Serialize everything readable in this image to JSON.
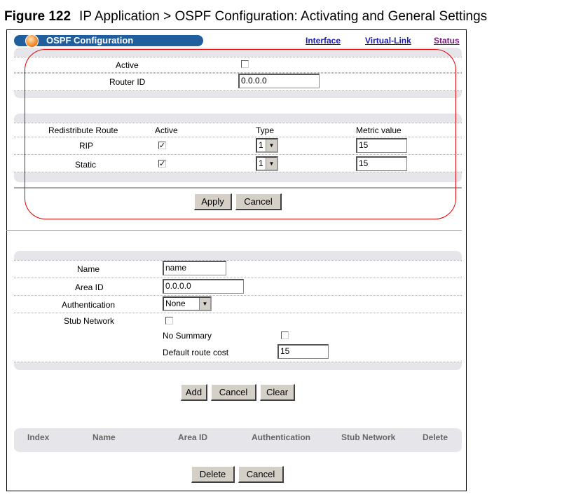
{
  "caption": {
    "figure": "Figure 122",
    "text": "IP Application > OSPF Configuration: Activating and General Settings"
  },
  "header": {
    "title": "OSPF Configuration",
    "links": [
      "Interface",
      "Virtual-Link",
      "Status"
    ]
  },
  "general": {
    "active_label": "Active",
    "active_checked": false,
    "router_id_label": "Router ID",
    "router_id_value": "0.0.0.0"
  },
  "redistribute": {
    "headers": [
      "Redistribute Route",
      "Active",
      "Type",
      "Metric value"
    ],
    "rows": [
      {
        "name": "RIP",
        "active": true,
        "type": "1",
        "metric": "15"
      },
      {
        "name": "Static",
        "active": true,
        "type": "1",
        "metric": "15"
      }
    ]
  },
  "buttons1": {
    "apply": "Apply",
    "cancel": "Cancel"
  },
  "area": {
    "name_label": "Name",
    "name_value": "name",
    "area_id_label": "Area ID",
    "area_id_value": "0.0.0.0",
    "auth_label": "Authentication",
    "auth_value": "None",
    "stub_label": "Stub Network",
    "stub_checked": false,
    "no_summary_label": "No Summary",
    "no_summary_checked": false,
    "cost_label": "Default route cost",
    "cost_value": "15"
  },
  "buttons2": {
    "add": "Add",
    "cancel": "Cancel",
    "clear": "Clear"
  },
  "table": {
    "headers": [
      "Index",
      "Name",
      "Area ID",
      "Authentication",
      "Stub Network",
      "Delete"
    ]
  },
  "buttons3": {
    "delete": "Delete",
    "cancel": "Cancel"
  },
  "colors": {
    "header_bar": "#215e9e",
    "highlight": "#e00000",
    "status_link": "#7a1a7a"
  }
}
